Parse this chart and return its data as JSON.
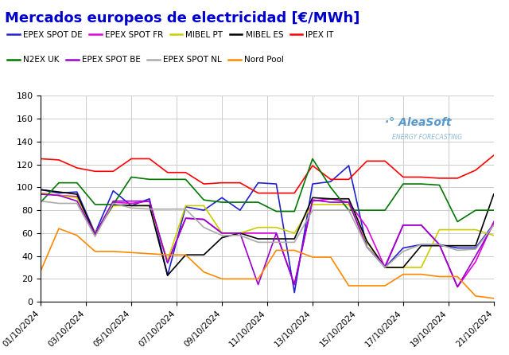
{
  "title": "Mercados europeos de electricidad [€/MWh]",
  "title_color": "#0000cc",
  "background_color": "#ffffff",
  "plot_bg_color": "#ffffff",
  "grid_color": "#cccccc",
  "x_labels": [
    "01/10/2024",
    "03/10/2024",
    "05/10/2024",
    "07/10/2024",
    "09/10/2024",
    "11/10/2024",
    "13/10/2024",
    "15/10/2024",
    "17/10/2024",
    "19/10/2024",
    "21/10/2024"
  ],
  "ylim": [
    0,
    180
  ],
  "yticks": [
    0,
    20,
    40,
    60,
    80,
    100,
    120,
    140,
    160,
    180
  ],
  "series_order": [
    "EPEX SPOT DE",
    "EPEX SPOT FR",
    "MIBEL PT",
    "MIBEL ES",
    "IPEX IT",
    "N2EX UK",
    "EPEX SPOT BE",
    "EPEX SPOT NL",
    "Nord Pool"
  ],
  "series": {
    "EPEX SPOT DE": {
      "color": "#2222cc",
      "data": [
        98,
        95,
        96,
        60,
        97,
        84,
        90,
        23,
        83,
        80,
        91,
        80,
        104,
        103,
        8,
        103,
        105,
        119,
        48,
        30,
        47,
        50,
        50,
        47,
        47,
        68
      ]
    },
    "EPEX SPOT FR": {
      "color": "#dd00dd",
      "data": [
        95,
        93,
        92,
        59,
        87,
        86,
        88,
        34,
        73,
        72,
        60,
        60,
        60,
        60,
        15,
        88,
        90,
        87,
        65,
        30,
        67,
        67,
        50,
        13,
        35,
        70
      ]
    },
    "MIBEL PT": {
      "color": "#cccc00",
      "data": [
        95,
        93,
        91,
        60,
        84,
        84,
        84,
        36,
        84,
        84,
        60,
        60,
        65,
        65,
        60,
        85,
        85,
        85,
        52,
        30,
        30,
        30,
        63,
        63,
        63,
        58
      ]
    },
    "MIBEL ES": {
      "color": "#000000",
      "data": [
        98,
        96,
        94,
        59,
        85,
        84,
        84,
        23,
        41,
        41,
        56,
        60,
        55,
        55,
        55,
        91,
        90,
        90,
        53,
        30,
        30,
        49,
        49,
        49,
        49,
        94
      ]
    },
    "IPEX IT": {
      "color": "#ff0000",
      "data": [
        125,
        124,
        117,
        114,
        114,
        125,
        125,
        113,
        113,
        103,
        104,
        104,
        95,
        95,
        95,
        119,
        107,
        107,
        123,
        123,
        109,
        109,
        108,
        108,
        115,
        128
      ]
    },
    "N2EX UK": {
      "color": "#007700",
      "data": [
        87,
        104,
        104,
        85,
        85,
        109,
        107,
        107,
        107,
        89,
        87,
        87,
        87,
        79,
        79,
        125,
        100,
        80,
        80,
        80,
        103,
        103,
        102,
        70,
        80,
        80
      ]
    },
    "EPEX SPOT BE": {
      "color": "#9900cc",
      "data": [
        94,
        93,
        88,
        59,
        88,
        88,
        88,
        34,
        73,
        72,
        60,
        60,
        15,
        60,
        15,
        89,
        87,
        87,
        48,
        31,
        67,
        67,
        50,
        13,
        40,
        68
      ]
    },
    "EPEX SPOT NL": {
      "color": "#aaaaaa",
      "data": [
        88,
        86,
        86,
        57,
        86,
        82,
        81,
        81,
        81,
        65,
        58,
        58,
        52,
        52,
        52,
        80,
        80,
        80,
        48,
        30,
        44,
        50,
        50,
        45,
        46,
        67
      ]
    },
    "Nord Pool": {
      "color": "#ff8800",
      "data": [
        27,
        64,
        58,
        44,
        44,
        43,
        42,
        41,
        41,
        26,
        20,
        20,
        20,
        45,
        45,
        39,
        39,
        14,
        14,
        14,
        24,
        24,
        22,
        22,
        5,
        3
      ]
    }
  }
}
